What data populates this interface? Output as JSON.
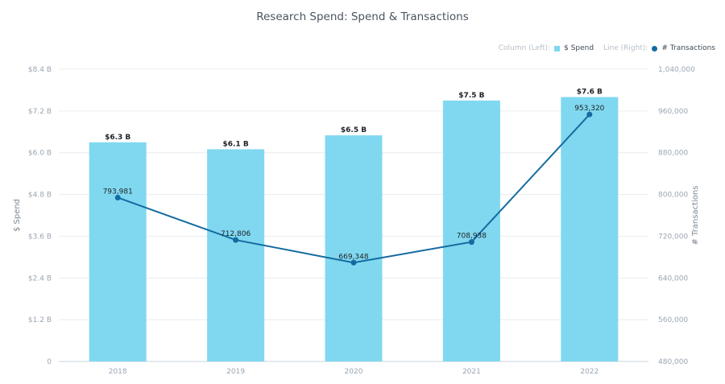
{
  "chart_data": {
    "type": "bar",
    "title": "Research Spend: Spend & Transactions",
    "categories": [
      "2018",
      "2019",
      "2020",
      "2021",
      "2022"
    ],
    "series": [
      {
        "name": "$ Spend",
        "kind": "bar",
        "axis": "left",
        "values": [
          6.3,
          6.1,
          6.5,
          7.5,
          7.6
        ],
        "value_labels": [
          "$6.3 B",
          "$6.1 B",
          "$6.5 B",
          "$7.5 B",
          "$7.6 B"
        ],
        "color": "#80d8f0"
      },
      {
        "name": "# Transactions",
        "kind": "line",
        "axis": "right",
        "values": [
          793981,
          712806,
          669348,
          708938,
          953320
        ],
        "value_labels": [
          "793,981",
          "712,806",
          "669,348",
          "708,938",
          "953,320"
        ],
        "color": "#146ba0"
      }
    ],
    "y_left": {
      "label": "$ Spend",
      "range": [
        0,
        8.4
      ],
      "ticks": [
        0,
        1.2,
        2.4,
        3.6,
        4.8,
        6.0,
        7.2,
        8.4
      ],
      "tick_labels": [
        "0",
        "$1.2 B",
        "$2.4 B",
        "$3.6 B",
        "$4.8 B",
        "$6.0 B",
        "$7.2 B",
        "$8.4 B"
      ]
    },
    "y_right": {
      "label": "# Transactions",
      "range": [
        480000,
        1040000
      ],
      "ticks": [
        480000,
        560000,
        640000,
        720000,
        800000,
        880000,
        960000,
        1040000
      ],
      "tick_labels": [
        "480,000",
        "560,000",
        "640,000",
        "720,000",
        "800,000",
        "880,000",
        "960,000",
        "1,040,000"
      ]
    },
    "grid": true,
    "legend_position": "top-right"
  },
  "legend": {
    "column_label": "Column (Left):",
    "line_label": "Line (Right):"
  }
}
